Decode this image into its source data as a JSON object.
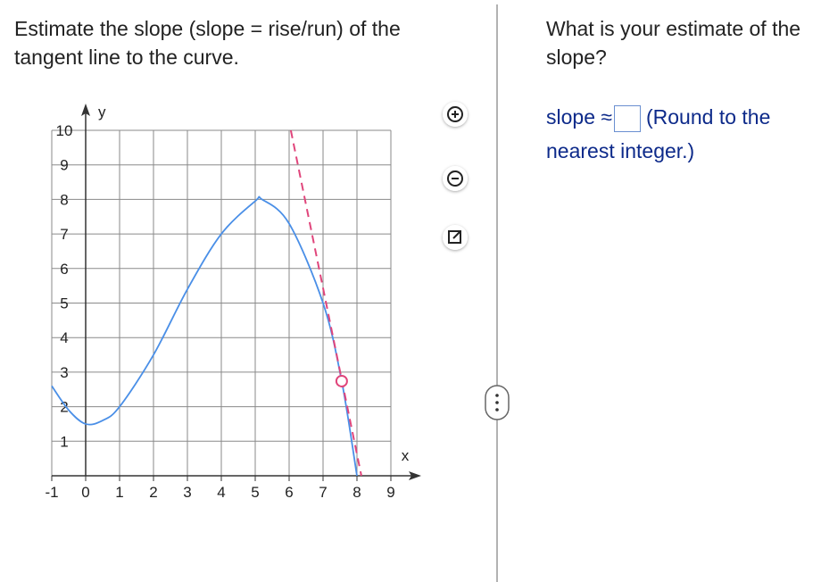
{
  "question": "Estimate the slope (slope = rise/run) of the tangent line to the curve.",
  "graph": {
    "x_label": "x",
    "y_label": "y",
    "xlim": [
      -1,
      9
    ],
    "ylim": [
      0,
      10
    ],
    "xticks": [
      -1,
      0,
      1,
      2,
      3,
      4,
      5,
      6,
      7,
      8,
      9
    ],
    "yticks": [
      1,
      2,
      3,
      4,
      5,
      6,
      7,
      8,
      9,
      10
    ],
    "curve": {
      "color": "#4a8fe7",
      "x": [
        -1,
        -0.5,
        0,
        0.5,
        1,
        2,
        3,
        4,
        5,
        5.2,
        6,
        7,
        7.55,
        8
      ],
      "y": [
        2.6,
        1.9,
        1.5,
        1.6,
        2,
        3.5,
        5.4,
        7,
        7.95,
        8,
        7.3,
        5,
        2.74,
        0
      ]
    },
    "tangent": {
      "color": "#e0457b",
      "x": [
        6.05,
        8.13
      ],
      "y": [
        10,
        0
      ]
    },
    "point": {
      "color": "#e0457b",
      "x": 7.55,
      "y": 2.74
    }
  },
  "answer": {
    "prompt": "What is your estimate of the slope?",
    "label": "slope ≈",
    "hint": "(Round to the nearest integer.)"
  }
}
